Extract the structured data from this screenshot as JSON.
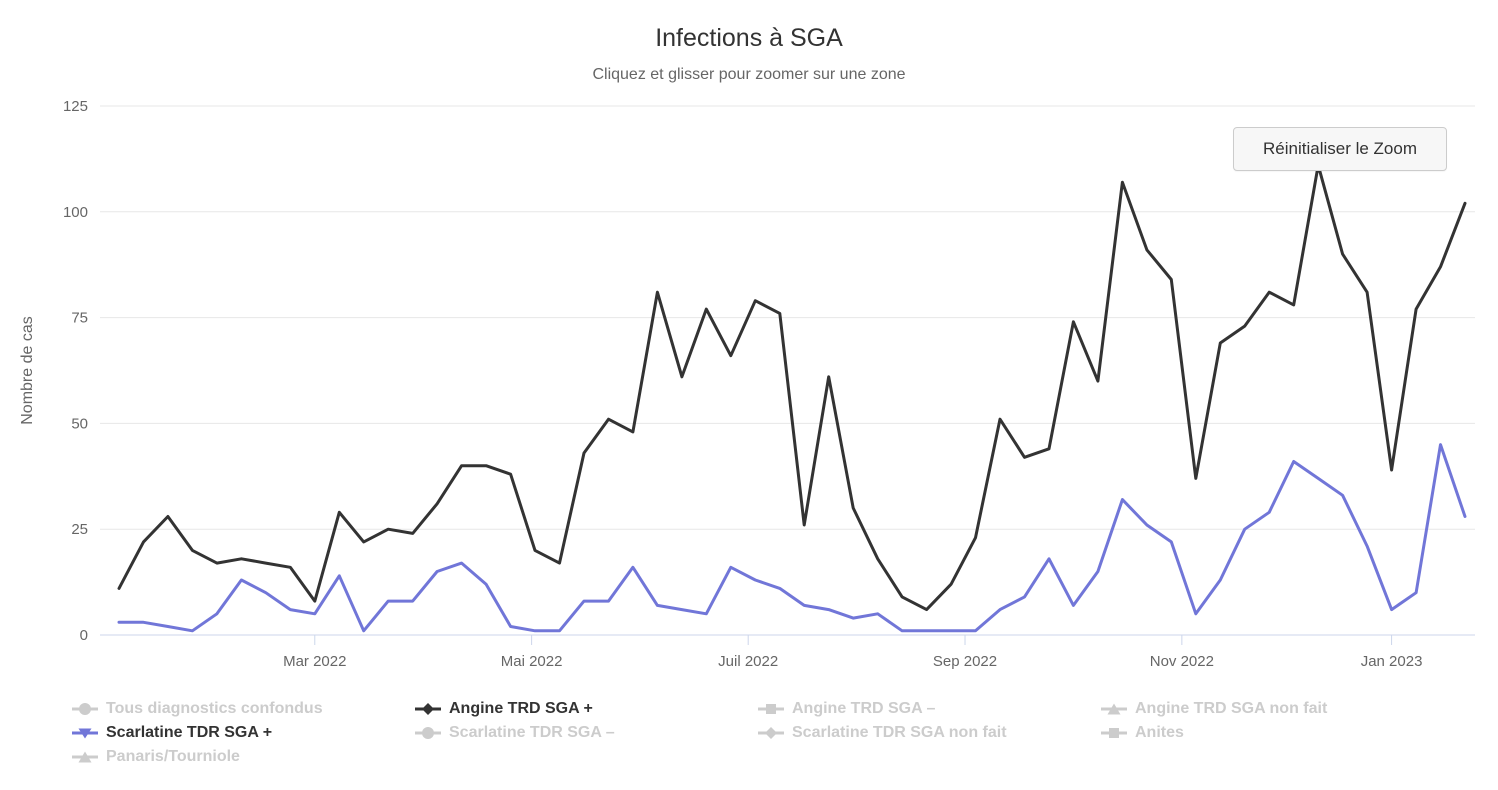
{
  "header": {
    "title": "Infections à SGA",
    "subtitle": "Cliquez et glisser pour zoomer sur une zone"
  },
  "button": {
    "reset_zoom": "Réinitialiser le Zoom"
  },
  "colors": {
    "angine_positive": "#333333",
    "scarlatine_positive": "#7176d8",
    "disabled_legend": "#cccccc",
    "gridline": "#e7e7e7",
    "axis_line": "#ccd6eb"
  },
  "chart_data": {
    "type": "line",
    "title": "Infections à SGA",
    "subtitle": "Cliquez et glisser pour zoomer sur une zone",
    "xlabel": "",
    "ylabel": "Nombre de cas",
    "ylim": [
      0,
      125
    ],
    "yticks": [
      0,
      25,
      50,
      75,
      100,
      125
    ],
    "grid": true,
    "legend_position": "bottom",
    "x_unit": "week",
    "x_range_note": "weekly points from early Jan 2022 to late Jan 2023",
    "xticks": [
      {
        "label": "Mar 2022",
        "week": 8.0
      },
      {
        "label": "Mai 2022",
        "week": 16.86
      },
      {
        "label": "Juil 2022",
        "week": 25.71
      },
      {
        "label": "Sep 2022",
        "week": 34.57
      },
      {
        "label": "Nov 2022",
        "week": 43.43
      },
      {
        "label": "Jan 2023",
        "week": 52.0
      }
    ],
    "series": [
      {
        "name": "Angine TRD SGA +",
        "color": "#333333",
        "marker": "diamond",
        "visible": true,
        "values": [
          11,
          22,
          28,
          20,
          17,
          18,
          17,
          16,
          8,
          29,
          22,
          25,
          24,
          31,
          40,
          40,
          38,
          20,
          17,
          43,
          51,
          48,
          81,
          61,
          77,
          66,
          79,
          76,
          26,
          61,
          30,
          18,
          9,
          6,
          12,
          23,
          51,
          42,
          44,
          74,
          60,
          107,
          91,
          84,
          37,
          69,
          73,
          81,
          78,
          111,
          90,
          81,
          39,
          77,
          87,
          102
        ]
      },
      {
        "name": "Scarlatine TDR SGA +",
        "color": "#7176d8",
        "marker": "triangle-down",
        "visible": true,
        "values": [
          3,
          3,
          2,
          1,
          5,
          13,
          10,
          6,
          5,
          14,
          1,
          8,
          8,
          15,
          17,
          12,
          2,
          1,
          1,
          8,
          8,
          16,
          7,
          6,
          5,
          16,
          13,
          11,
          7,
          6,
          4,
          5,
          1,
          1,
          1,
          1,
          6,
          9,
          18,
          7,
          15,
          32,
          26,
          22,
          5,
          13,
          25,
          29,
          41,
          37,
          33,
          21,
          6,
          10,
          45,
          28
        ]
      }
    ]
  },
  "legend": {
    "items": [
      {
        "label": "Tous diagnostics confondus",
        "marker": "circle",
        "color": "#cccccc",
        "active": false
      },
      {
        "label": "Angine TRD SGA +",
        "marker": "diamond",
        "color": "#333333",
        "active": true
      },
      {
        "label": "Angine TRD SGA –",
        "marker": "square",
        "color": "#cccccc",
        "active": false
      },
      {
        "label": "Angine TRD SGA non fait",
        "marker": "triangle",
        "color": "#cccccc",
        "active": false
      },
      {
        "label": "Scarlatine TDR SGA +",
        "marker": "triangle-down",
        "color": "#7176d8",
        "active": true
      },
      {
        "label": "Scarlatine TDR SGA –",
        "marker": "circle",
        "color": "#cccccc",
        "active": false
      },
      {
        "label": "Scarlatine TDR SGA non fait",
        "marker": "diamond",
        "color": "#cccccc",
        "active": false
      },
      {
        "label": "Anites",
        "marker": "square",
        "color": "#cccccc",
        "active": false
      },
      {
        "label": "Panaris/Tourniole",
        "marker": "triangle",
        "color": "#cccccc",
        "active": false
      }
    ]
  }
}
